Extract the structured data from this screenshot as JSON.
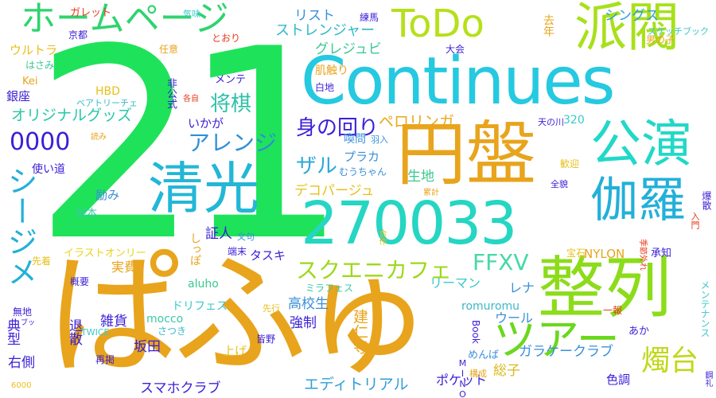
{
  "words": [
    {
      "text": "21",
      "color": "#1ee35a"
    },
    {
      "text": "ぱふゅ",
      "color": "#e8a41c"
    },
    {
      "text": "Continues",
      "color": "#25c9e0"
    },
    {
      "text": "円盤",
      "color": "#e8a41c"
    },
    {
      "text": "整列",
      "color": "#8cdc1a"
    },
    {
      "text": "270033",
      "color": "#25d6c2"
    },
    {
      "text": "派閥",
      "color": "#a8e01a"
    },
    {
      "text": "ToDo",
      "color": "#b6e01a"
    },
    {
      "text": "ホームページ",
      "color": "#2ed46e"
    },
    {
      "text": "清光",
      "color": "#23b7d6"
    },
    {
      "text": "公演",
      "color": "#22d8c8"
    },
    {
      "text": "伽羅",
      "color": "#23b0d8"
    },
    {
      "text": "ツアー",
      "color": "#6ad81c"
    },
    {
      "text": "シージメ",
      "color": "#23b0d8"
    },
    {
      "text": "0000",
      "color": "#3a1fd6"
    },
    {
      "text": "身の回り",
      "color": "#3a1fd6"
    },
    {
      "text": "アレンジ",
      "color": "#2f8fd8"
    },
    {
      "text": "スクエニカフェ",
      "color": "#9ed81a"
    },
    {
      "text": "FFXV",
      "color": "#46d8a8"
    },
    {
      "text": "燭台",
      "color": "#c0d81a"
    },
    {
      "text": "将棋",
      "color": "#30c0a8"
    },
    {
      "text": "ザル",
      "color": "#2fa8d8"
    },
    {
      "text": "オリジナルグッズ",
      "color": "#27c8a8"
    },
    {
      "text": "デコパージュ",
      "color": "#e8c01a"
    },
    {
      "text": "ストレンジャー",
      "color": "#2fb8c8"
    },
    {
      "text": "グレジュビ",
      "color": "#3ac890"
    },
    {
      "text": "シングス",
      "color": "#2f9fd6"
    },
    {
      "text": "リスト",
      "color": "#3a8fd8"
    },
    {
      "text": "ペロリンガ",
      "color": "#e8a81a"
    },
    {
      "text": "NYLON",
      "color": "#e8a41c"
    },
    {
      "text": "エディトリアル",
      "color": "#2f9fd6"
    },
    {
      "text": "ガラケークラブ",
      "color": "#3a8fd8"
    },
    {
      "text": "スマホクラブ",
      "color": "#3a1fd6"
    },
    {
      "text": "ポケット",
      "color": "#3a1fd6"
    },
    {
      "text": "総子",
      "color": "#d8b81a"
    },
    {
      "text": "建仁寺",
      "color": "#e8a41c"
    },
    {
      "text": "強制",
      "color": "#3a1fd6"
    },
    {
      "text": "高校生",
      "color": "#3a8fd8"
    },
    {
      "text": "ウール",
      "color": "#3a8fd8"
    },
    {
      "text": "romuromu",
      "color": "#3ab8c8"
    },
    {
      "text": "レナ",
      "color": "#3a8fd8"
    },
    {
      "text": "リーマン",
      "color": "#3ac8c8"
    },
    {
      "text": "ミラフェス",
      "color": "#3ac8a8"
    },
    {
      "text": "ドリフェス",
      "color": "#3ac8c8"
    },
    {
      "text": "mocco",
      "color": "#3ac8a8"
    },
    {
      "text": "aluho",
      "color": "#3ac890"
    },
    {
      "text": "実費",
      "color": "#e8a41c"
    },
    {
      "text": "雑貨",
      "color": "#3a1fd6"
    },
    {
      "text": "坂田",
      "color": "#3a1fd6"
    },
    {
      "text": "上げ",
      "color": "#e8c01a"
    },
    {
      "text": "右側",
      "color": "#3a1fd6"
    },
    {
      "text": "典型",
      "color": "#3a1fd6"
    },
    {
      "text": "退散",
      "color": "#3a1fd6"
    },
    {
      "text": "銀座",
      "color": "#3a1fd6"
    },
    {
      "text": "HBD",
      "color": "#e8c01a"
    },
    {
      "text": "ベアトリーチェ",
      "color": "#3ab8c8"
    },
    {
      "text": "いかが",
      "color": "#3a1fd6"
    },
    {
      "text": "励み",
      "color": "#3a8fd8"
    },
    {
      "text": "絵本",
      "color": "#3ac8a8"
    },
    {
      "text": "使い道",
      "color": "#3a1fd6"
    },
    {
      "text": "証人",
      "color": "#3a1fd6"
    },
    {
      "text": "タスキ",
      "color": "#3a1fd6"
    },
    {
      "text": "端末",
      "color": "#3a1fd6"
    },
    {
      "text": "文句",
      "color": "#3a8fd8"
    },
    {
      "text": "しっぽ",
      "color": "#e8a41c"
    },
    {
      "text": "イラストオンリー",
      "color": "#e8d41a"
    },
    {
      "text": "先着",
      "color": "#e8c01a"
    },
    {
      "text": "概要",
      "color": "#3a1fd6"
    },
    {
      "text": "無地",
      "color": "#3a1fd6"
    },
    {
      "text": "ブッ",
      "color": "#3a1fd6"
    },
    {
      "text": "TWICE",
      "color": "#3ac8c8"
    },
    {
      "text": "再掲",
      "color": "#3a1fd6"
    },
    {
      "text": "6000",
      "color": "#e8c01a"
    },
    {
      "text": "皆野",
      "color": "#3a1fd6"
    },
    {
      "text": "さつき",
      "color": "#3ab8c8"
    },
    {
      "text": "先行",
      "color": "#e8c01a"
    },
    {
      "text": "構成",
      "color": "#e8a41c"
    },
    {
      "text": "MINO",
      "color": "#3a1fd6"
    },
    {
      "text": "めんば",
      "color": "#3a8fd8"
    },
    {
      "text": "Book",
      "color": "#3a1fd6"
    },
    {
      "text": "色調",
      "color": "#3a1fd6"
    },
    {
      "text": "あか",
      "color": "#3a1fd6"
    },
    {
      "text": "一報",
      "color": "#e83a1a"
    },
    {
      "text": "メンテナンス",
      "color": "#3ac8c8"
    },
    {
      "text": "鋼礼",
      "color": "#3a1fd6"
    },
    {
      "text": "承知",
      "color": "#3a1fd6"
    },
    {
      "text": "入門",
      "color": "#e83a1a"
    },
    {
      "text": "爆散",
      "color": "#3a1fd6"
    },
    {
      "text": "季節外れ",
      "color": "#e83a1a"
    },
    {
      "text": "宝石",
      "color": "#e8c01a"
    },
    {
      "text": "全貌",
      "color": "#3a1fd6"
    },
    {
      "text": "歓迎",
      "color": "#e8c01a"
    },
    {
      "text": "累計",
      "color": "#e8a41c"
    },
    {
      "text": "天の川",
      "color": "#3a1fd6"
    },
    {
      "text": "320",
      "color": "#3ac8c8"
    },
    {
      "text": "むうちゃん",
      "color": "#3a8fd8"
    },
    {
      "text": "プラカ",
      "color": "#3a8fd8"
    },
    {
      "text": "羽入",
      "color": "#3a8fd8"
    },
    {
      "text": "喚問",
      "color": "#3a8fd8"
    },
    {
      "text": "肌触り",
      "color": "#e8a41c"
    },
    {
      "text": "生地",
      "color": "#3ac890"
    },
    {
      "text": "合作",
      "color": "#e8c01a"
    },
    {
      "text": "白地",
      "color": "#3a1fd6"
    },
    {
      "text": "メンテ",
      "color": "#3a1fd6"
    },
    {
      "text": "非公式",
      "color": "#3a1fd6"
    },
    {
      "text": "各自",
      "color": "#e83a1a"
    },
    {
      "text": "読み",
      "color": "#e8a41c"
    },
    {
      "text": "Kei",
      "color": "#e8a41c"
    },
    {
      "text": "はさみ",
      "color": "#3ac890"
    },
    {
      "text": "ウルトラ",
      "color": "#e8c01a"
    },
    {
      "text": "京都",
      "color": "#3a1fd6"
    },
    {
      "text": "ガレット",
      "color": "#e83a1a"
    },
    {
      "text": "気味",
      "color": "#3ac8c8"
    },
    {
      "text": "任意",
      "color": "#e8a41c"
    },
    {
      "text": "とおり",
      "color": "#e83a1a"
    },
    {
      "text": "練馬",
      "color": "#3a1fd6"
    },
    {
      "text": "去年",
      "color": "#e8a41c"
    },
    {
      "text": "大会",
      "color": "#3a1fd6"
    },
    {
      "text": "スケッチブック",
      "color": "#3ac8c8"
    },
    {
      "text": "男の子",
      "color": "#e8a41c"
    }
  ]
}
